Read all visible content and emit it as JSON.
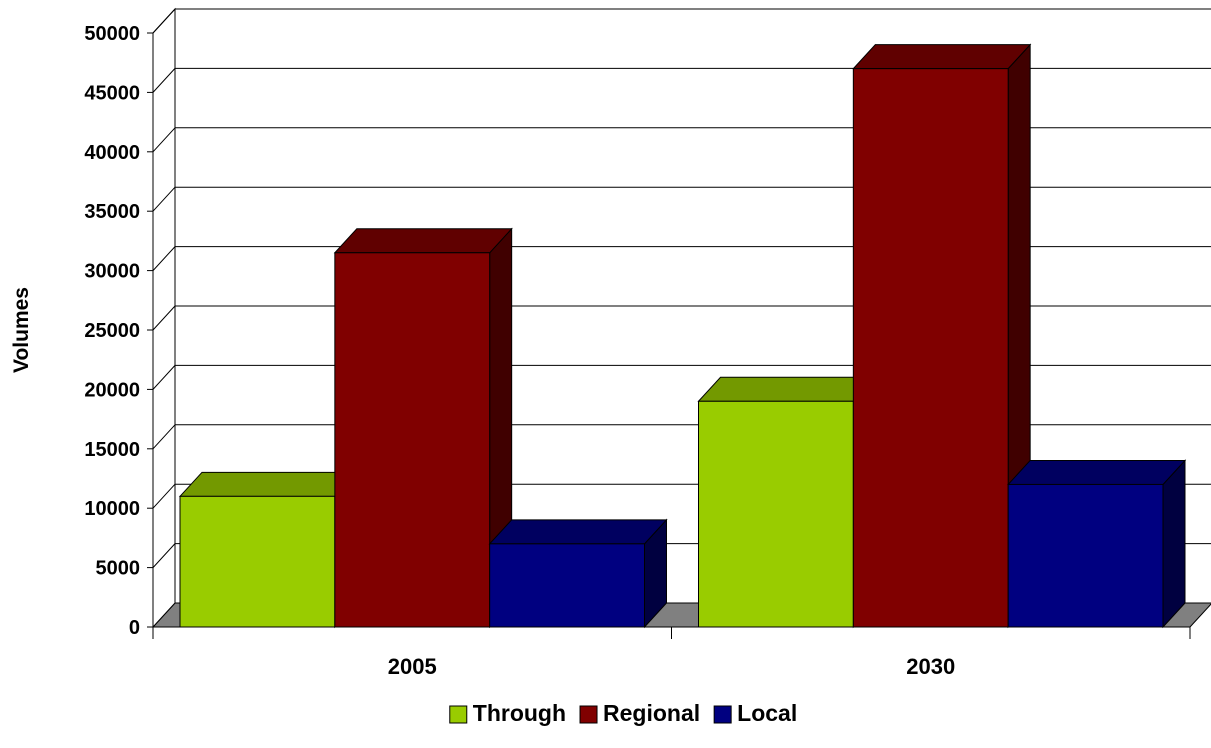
{
  "chart_data": {
    "type": "bar",
    "style": "3d-clustered",
    "categories": [
      "2005",
      "2030"
    ],
    "series": [
      {
        "name": "Through",
        "values": [
          11000,
          19000
        ],
        "color": "#99CC00",
        "top_color": "#739900",
        "side_color": "#4D6600"
      },
      {
        "name": "Regional",
        "values": [
          31500,
          47000
        ],
        "color": "#800000",
        "top_color": "#600000",
        "side_color": "#400000"
      },
      {
        "name": "Local",
        "values": [
          7000,
          12000
        ],
        "color": "#000080",
        "top_color": "#000060",
        "side_color": "#000040"
      }
    ],
    "title": "",
    "xlabel": "",
    "ylabel": "Volumes",
    "ylim": [
      0,
      50000
    ],
    "yticks": [
      "0",
      "5000",
      "10000",
      "15000",
      "20000",
      "25000",
      "30000",
      "35000",
      "40000",
      "45000",
      "50000"
    ],
    "grid": true,
    "legend_position": "bottom",
    "floor_color": "#808080"
  }
}
